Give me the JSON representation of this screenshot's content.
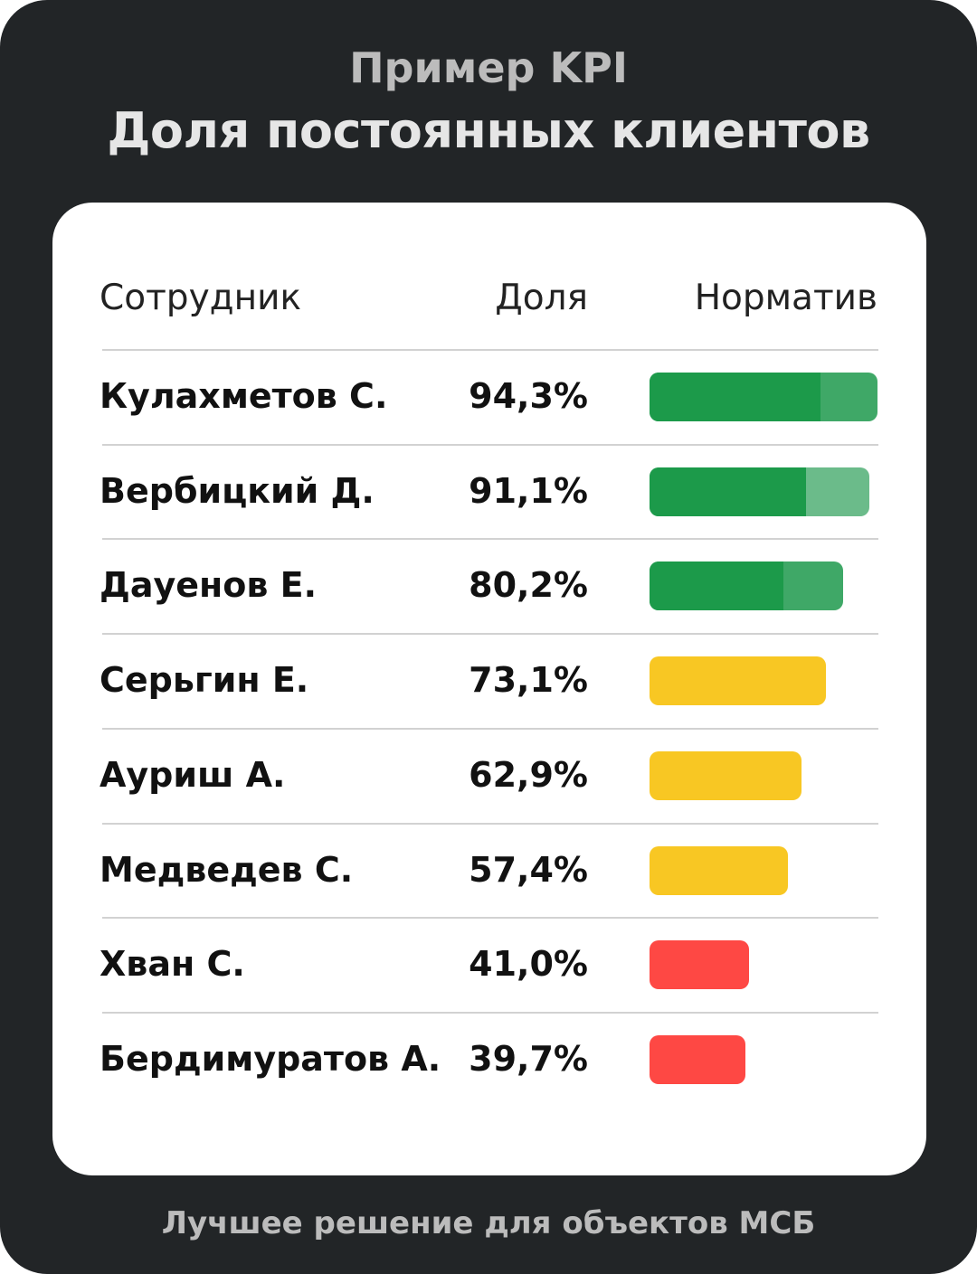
{
  "header": {
    "title": "Пример KPI",
    "subtitle": "Доля постоянных клиентов"
  },
  "footer": {
    "text": "Лучшее решение для объектов МСБ"
  },
  "colors": {
    "green": "#1c9a4a",
    "green_light": "#3fa867",
    "green_pale": "#6bbb8a",
    "yellow": "#f8c723",
    "red": "#fe4844"
  },
  "chart_data": {
    "type": "table",
    "columns": [
      "Сотрудник",
      "Доля",
      "Норматив"
    ],
    "rows": [
      {
        "name": "Кулахметов С.",
        "share": "94,3%",
        "value": 94.3,
        "status": "green",
        "overlay_color": "#3fa867",
        "overlay_fraction": 0.25
      },
      {
        "name": "Вербицкий Д.",
        "share": "91,1%",
        "value": 91.1,
        "status": "green",
        "overlay_color": "#6bbb8a",
        "overlay_fraction": 0.29
      },
      {
        "name": "Дауенов Е.",
        "share": "80,2%",
        "value": 80.2,
        "status": "green",
        "overlay_color": "#3fa867",
        "overlay_fraction": 0.31
      },
      {
        "name": "Серьгин Е.",
        "share": "73,1%",
        "value": 73.1,
        "status": "yellow"
      },
      {
        "name": "Ауриш А.",
        "share": "62,9%",
        "value": 62.9,
        "status": "yellow"
      },
      {
        "name": "Медведев С.",
        "share": "57,4%",
        "value": 57.4,
        "status": "yellow"
      },
      {
        "name": "Хван С.",
        "share": "41,0%",
        "value": 41.0,
        "status": "red"
      },
      {
        "name": "Бердимуратов А.",
        "share": "39,7%",
        "value": 39.7,
        "status": "red"
      }
    ]
  }
}
